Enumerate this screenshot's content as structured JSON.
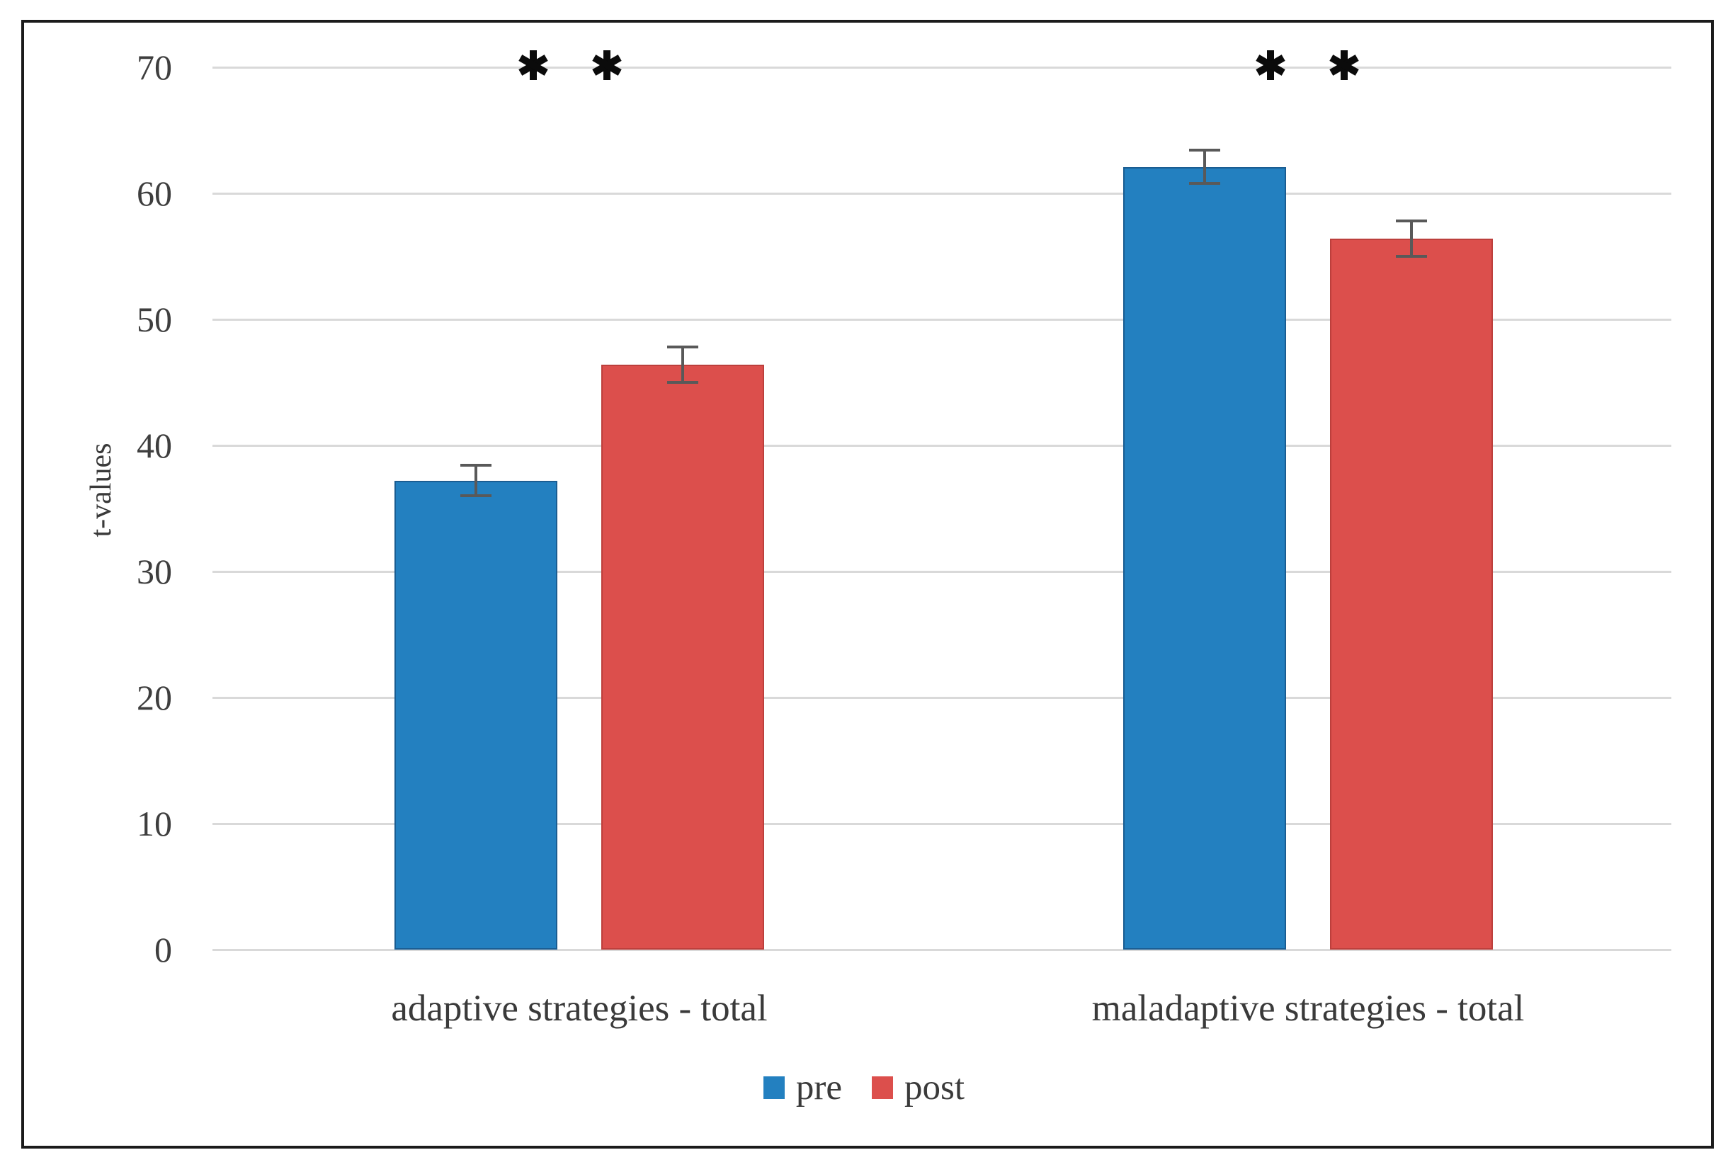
{
  "figure": {
    "kind": "journal-figure-bar-chart",
    "background": "#ffffff",
    "frame_color": "#1b1b1b"
  },
  "chart_data": {
    "type": "bar",
    "title": "",
    "xlabel": "",
    "ylabel": "t-values",
    "categories": [
      "adaptive strategies - total",
      "maladaptive strategies - total"
    ],
    "series": [
      {
        "name": "pre",
        "color": "#2380c0",
        "edge_color": "#1a5d92",
        "values": [
          37.2,
          62.1
        ],
        "errors": [
          1.2,
          1.3
        ]
      },
      {
        "name": "post",
        "color": "#dc4f4c",
        "edge_color": "#bc3f3c",
        "values": [
          46.4,
          56.4
        ],
        "errors": [
          1.4,
          1.4
        ]
      }
    ],
    "ylim": [
      0,
      70
    ],
    "yticks": [
      0,
      10,
      20,
      30,
      40,
      50,
      60,
      70
    ],
    "grid": true,
    "gridline_color": "#d9d9d9",
    "error_bar_color": "#595959",
    "legend_position": "bottom",
    "annotations": [
      {
        "group": 0,
        "symbols": [
          "*",
          "*"
        ]
      },
      {
        "group": 1,
        "symbols": [
          "*",
          "*"
        ]
      }
    ],
    "annotation_color": "#0b0b0b"
  }
}
